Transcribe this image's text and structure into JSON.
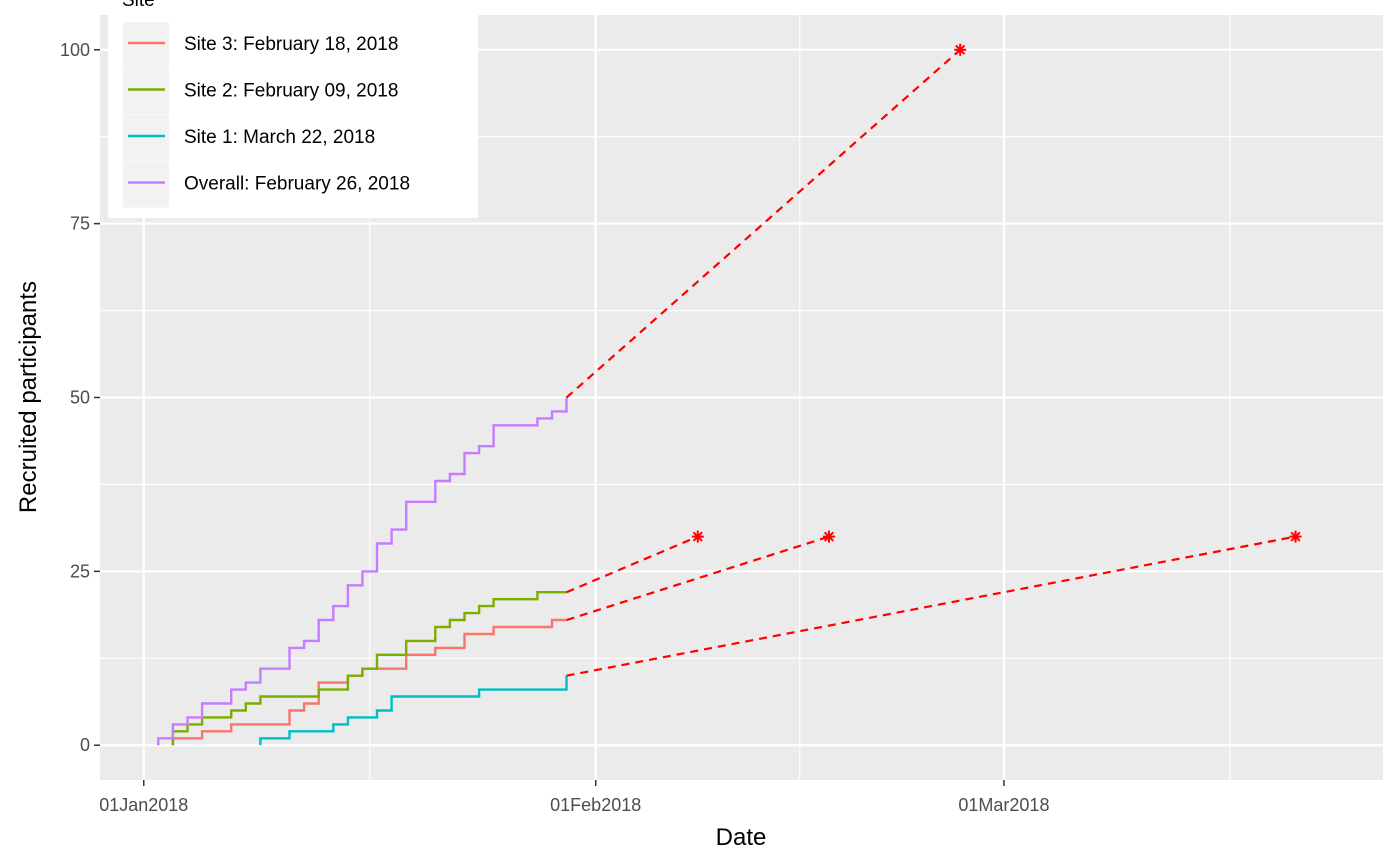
{
  "chart_data": {
    "type": "line",
    "title": "",
    "xlabel": "Date",
    "ylabel": "Recruited participants",
    "legend_title": "Site",
    "legend_position": "top-left",
    "grid": true,
    "x_unit": "date",
    "xlim": [
      "2017-12-29",
      "2018-03-27"
    ],
    "ylim": [
      -5,
      105
    ],
    "x_ticks": [
      {
        "date": "2018-01-01",
        "label": "01Jan2018"
      },
      {
        "date": "2018-02-01",
        "label": "01Feb2018"
      },
      {
        "date": "2018-03-01",
        "label": "01Mar2018"
      }
    ],
    "y_ticks": [
      0,
      25,
      50,
      75,
      100
    ],
    "series": [
      {
        "name": "Site 3: February 18, 2018",
        "color": "#F8766D",
        "steps": [
          [
            "2018-01-03",
            1
          ],
          [
            "2018-01-05",
            2
          ],
          [
            "2018-01-07",
            3
          ],
          [
            "2018-01-11",
            5
          ],
          [
            "2018-01-12",
            6
          ],
          [
            "2018-01-13",
            9
          ],
          [
            "2018-01-15",
            10
          ],
          [
            "2018-01-16",
            11
          ],
          [
            "2018-01-19",
            13
          ],
          [
            "2018-01-21",
            14
          ],
          [
            "2018-01-23",
            16
          ],
          [
            "2018-01-25",
            17
          ],
          [
            "2018-01-29",
            18
          ],
          [
            "2018-01-30",
            18
          ]
        ],
        "projection": {
          "from": [
            "2018-01-30",
            18
          ],
          "to": [
            "2018-02-17",
            30
          ]
        }
      },
      {
        "name": "Site 2: February 09, 2018",
        "color": "#7CAE00",
        "steps": [
          [
            "2018-01-03",
            2
          ],
          [
            "2018-01-04",
            3
          ],
          [
            "2018-01-05",
            4
          ],
          [
            "2018-01-07",
            5
          ],
          [
            "2018-01-08",
            6
          ],
          [
            "2018-01-09",
            7
          ],
          [
            "2018-01-13",
            8
          ],
          [
            "2018-01-15",
            10
          ],
          [
            "2018-01-16",
            11
          ],
          [
            "2018-01-17",
            13
          ],
          [
            "2018-01-19",
            15
          ],
          [
            "2018-01-21",
            17
          ],
          [
            "2018-01-22",
            18
          ],
          [
            "2018-01-23",
            19
          ],
          [
            "2018-01-24",
            20
          ],
          [
            "2018-01-25",
            21
          ],
          [
            "2018-01-28",
            22
          ],
          [
            "2018-01-30",
            22
          ]
        ],
        "projection": {
          "from": [
            "2018-01-30",
            22
          ],
          "to": [
            "2018-02-08",
            30
          ]
        }
      },
      {
        "name": "Site 1: March 22, 2018",
        "color": "#00BFC4",
        "steps": [
          [
            "2018-01-09",
            1
          ],
          [
            "2018-01-11",
            2
          ],
          [
            "2018-01-14",
            3
          ],
          [
            "2018-01-15",
            4
          ],
          [
            "2018-01-17",
            5
          ],
          [
            "2018-01-18",
            7
          ],
          [
            "2018-01-24",
            8
          ],
          [
            "2018-01-30",
            10
          ]
        ],
        "projection": {
          "from": [
            "2018-01-30",
            10
          ],
          "to": [
            "2018-03-21",
            30
          ]
        }
      },
      {
        "name": "Overall: February 26, 2018",
        "color": "#C77CFF",
        "steps": [
          [
            "2018-01-02",
            1
          ],
          [
            "2018-01-03",
            3
          ],
          [
            "2018-01-04",
            4
          ],
          [
            "2018-01-05",
            6
          ],
          [
            "2018-01-07",
            8
          ],
          [
            "2018-01-08",
            9
          ],
          [
            "2018-01-09",
            11
          ],
          [
            "2018-01-11",
            14
          ],
          [
            "2018-01-12",
            15
          ],
          [
            "2018-01-13",
            18
          ],
          [
            "2018-01-14",
            20
          ],
          [
            "2018-01-15",
            23
          ],
          [
            "2018-01-16",
            25
          ],
          [
            "2018-01-17",
            29
          ],
          [
            "2018-01-18",
            31
          ],
          [
            "2018-01-19",
            35
          ],
          [
            "2018-01-21",
            38
          ],
          [
            "2018-01-22",
            39
          ],
          [
            "2018-01-23",
            42
          ],
          [
            "2018-01-24",
            43
          ],
          [
            "2018-01-25",
            46
          ],
          [
            "2018-01-28",
            47
          ],
          [
            "2018-01-29",
            48
          ],
          [
            "2018-01-30",
            50
          ]
        ],
        "projection": {
          "from": [
            "2018-01-30",
            50
          ],
          "to": [
            "2018-02-26",
            100
          ]
        }
      }
    ],
    "projection_color": "#FF0000",
    "panel_background": "#EBEBEB",
    "grid_color": "#FFFFFF"
  }
}
